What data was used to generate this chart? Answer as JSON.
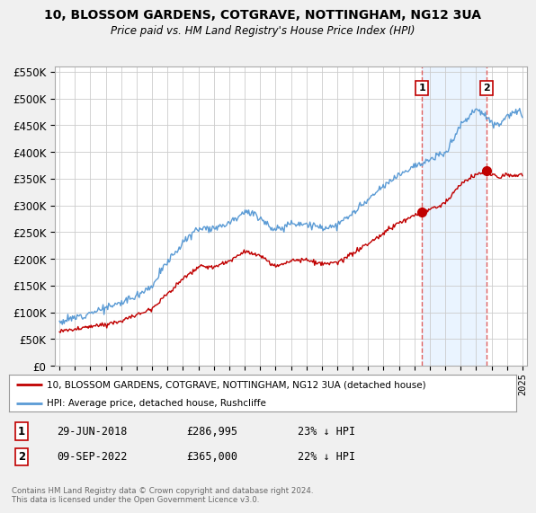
{
  "title": "10, BLOSSOM GARDENS, COTGRAVE, NOTTINGHAM, NG12 3UA",
  "subtitle": "Price paid vs. HM Land Registry's House Price Index (HPI)",
  "ylim": [
    0,
    560000
  ],
  "yticks": [
    0,
    50000,
    100000,
    150000,
    200000,
    250000,
    300000,
    350000,
    400000,
    450000,
    500000,
    550000
  ],
  "hpi_color": "#5b9bd5",
  "price_color": "#c00000",
  "vline_color": "#e06060",
  "shade_color": "#ddeeff",
  "sale1_x": 2018.5,
  "sale2_x": 2022.7,
  "sale1_price_y": 286995,
  "sale2_price_y": 365000,
  "sale1_date": "29-JUN-2018",
  "sale1_price": "£286,995",
  "sale1_pct": "23% ↓ HPI",
  "sale2_date": "09-SEP-2022",
  "sale2_price": "£365,000",
  "sale2_pct": "22% ↓ HPI",
  "legend_label1": "10, BLOSSOM GARDENS, COTGRAVE, NOTTINGHAM, NG12 3UA (detached house)",
  "legend_label2": "HPI: Average price, detached house, Rushcliffe",
  "footnote": "Contains HM Land Registry data © Crown copyright and database right 2024.\nThis data is licensed under the Open Government Licence v3.0.",
  "background_color": "#f0f0f0",
  "plot_bg_color": "#ffffff",
  "grid_color": "#cccccc",
  "xlim_left": 1994.7,
  "xlim_right": 2025.3
}
